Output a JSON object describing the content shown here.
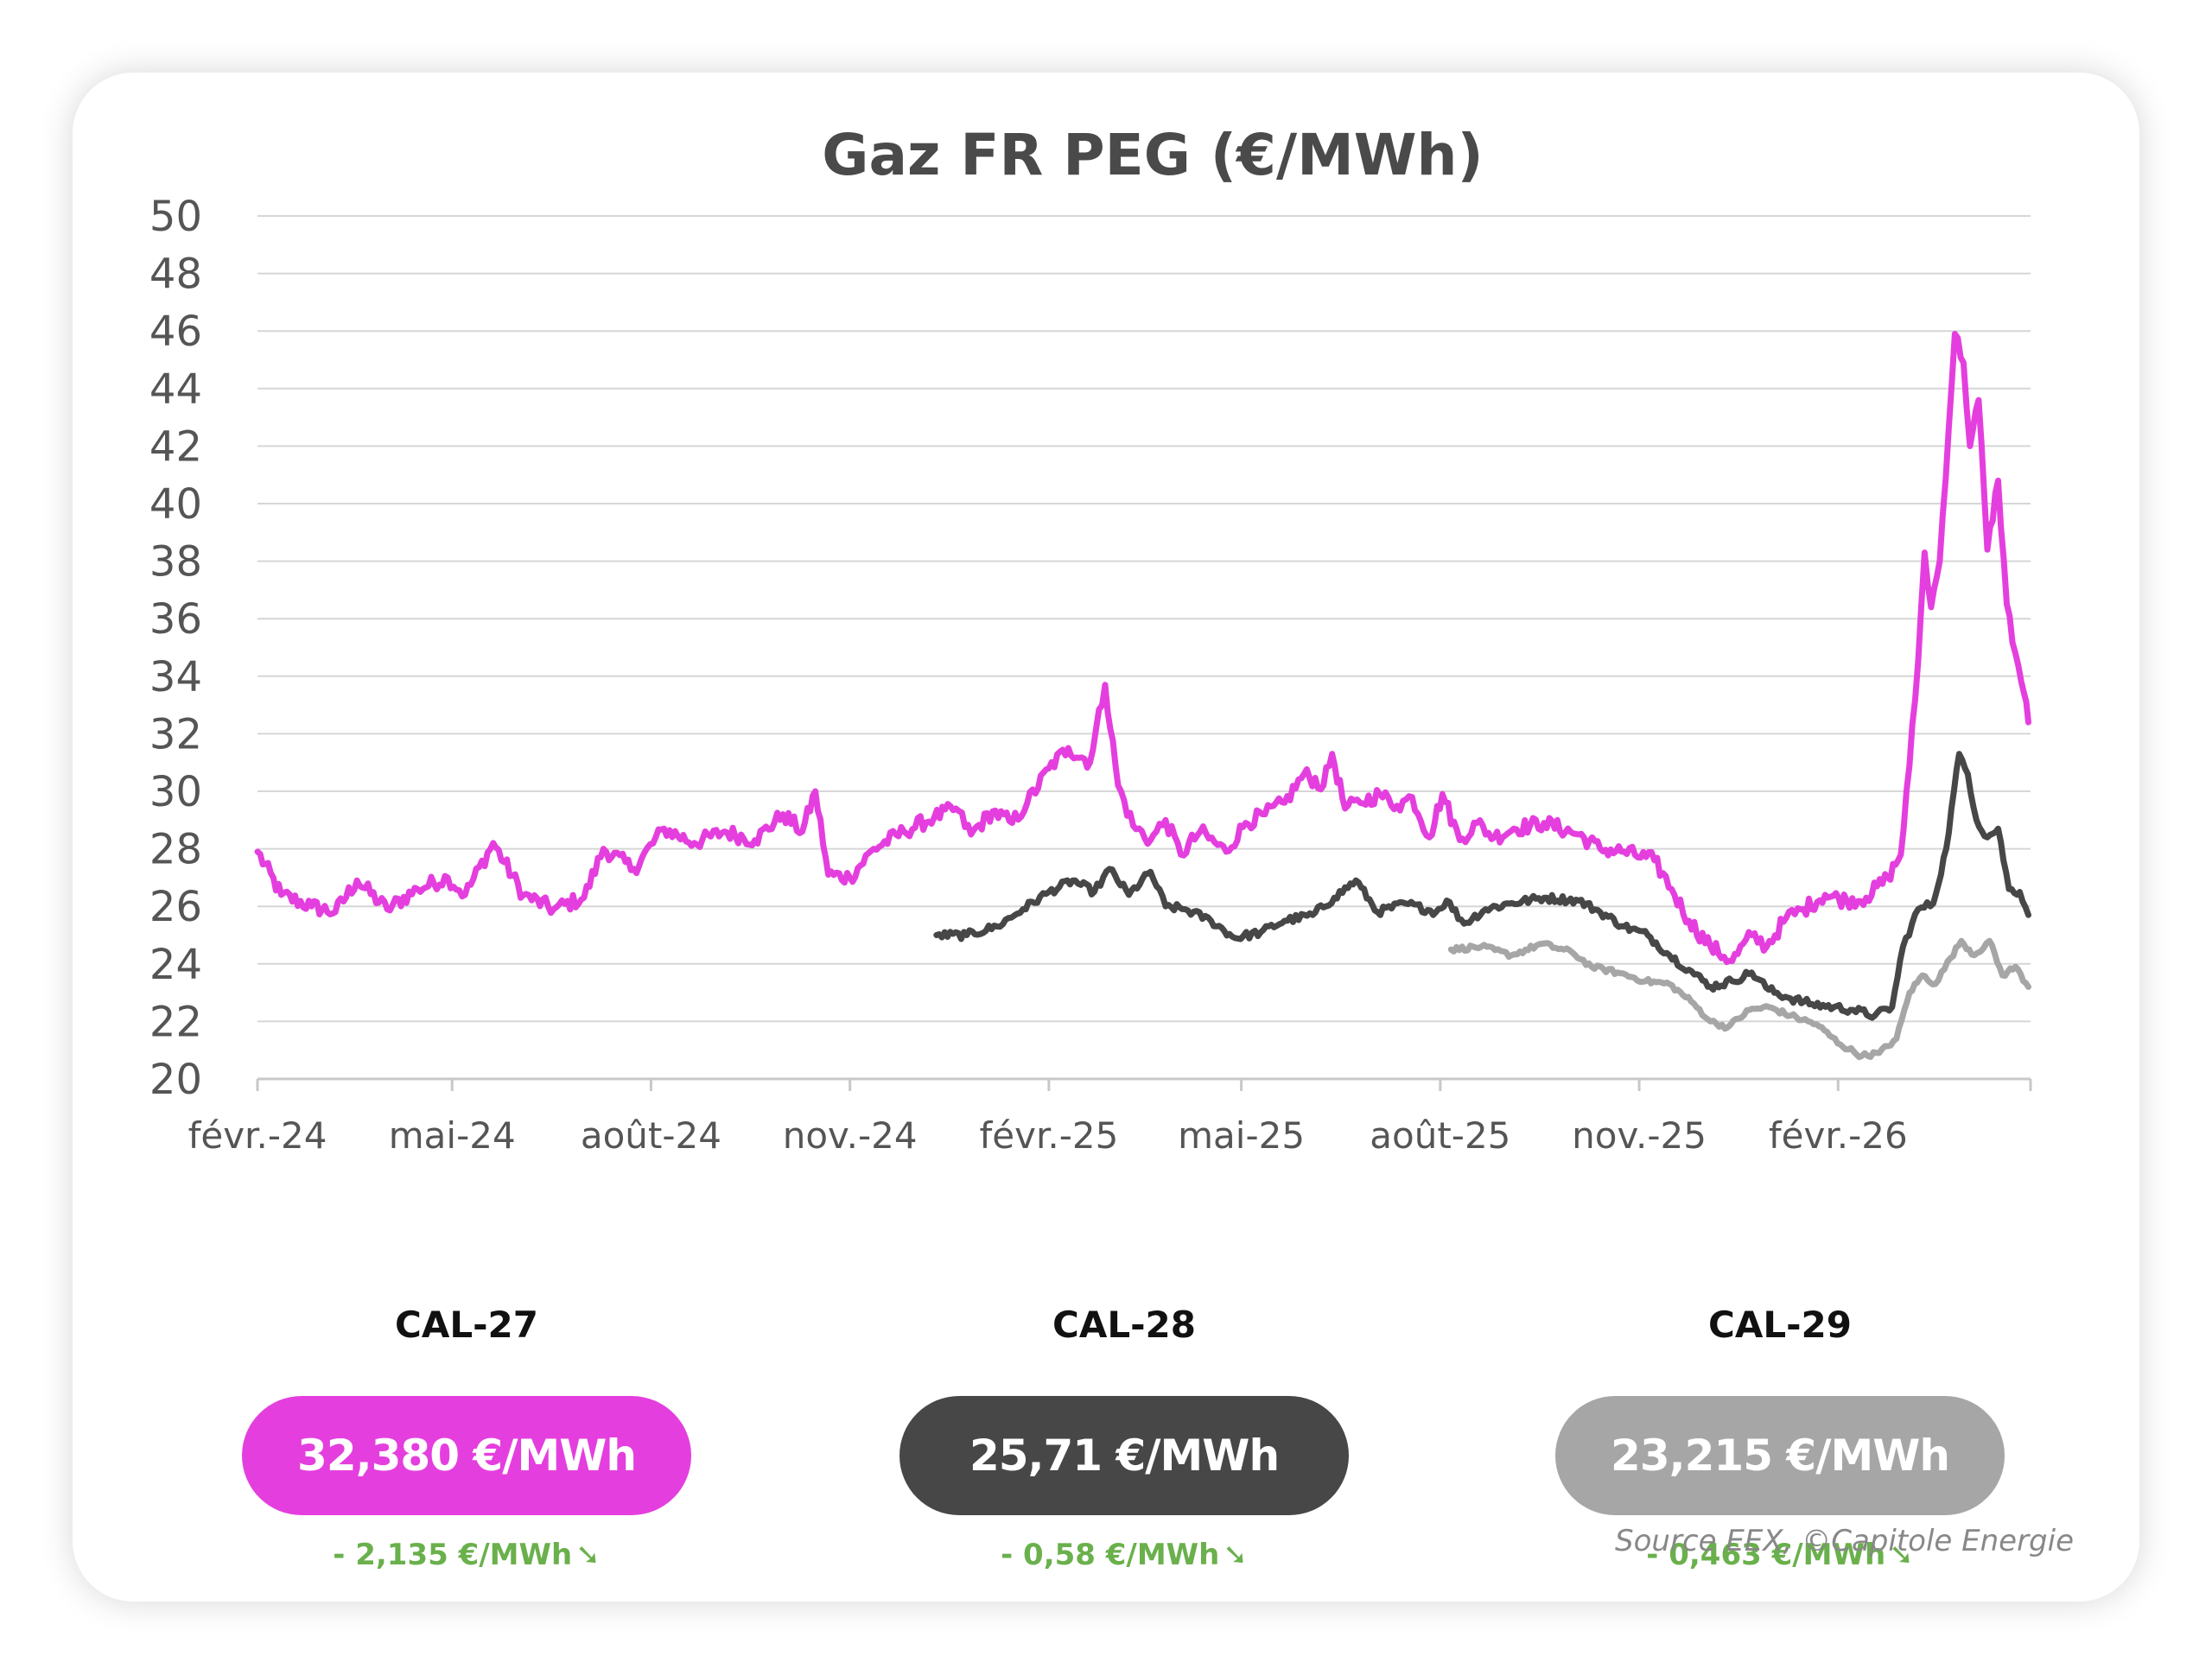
{
  "chart_data": {
    "type": "line",
    "title": "Gaz FR PEG (€/MWh)",
    "ylim": [
      20,
      50
    ],
    "y_ticks": [
      "20",
      "22",
      "24",
      "26",
      "28",
      "30",
      "32",
      "34",
      "36",
      "38",
      "40",
      "42",
      "44",
      "46",
      "48",
      "50"
    ],
    "x_tick_labels": [
      "févr.-24",
      "mai-24",
      "août-24",
      "nov.-24",
      "févr.-25",
      "mai-25",
      "août-25",
      "nov.-25",
      "févr.-26"
    ],
    "grid": true,
    "series": [
      {
        "name": "CAL-27",
        "color": "#e43fde",
        "points": [
          [
            "2024-02-01",
            27.9
          ],
          [
            "2024-02-12",
            26.4
          ],
          [
            "2024-02-26",
            26.0
          ],
          [
            "2024-03-08",
            25.8
          ],
          [
            "2024-03-18",
            26.9
          ],
          [
            "2024-04-01",
            25.9
          ],
          [
            "2024-04-15",
            26.6
          ],
          [
            "2024-04-29",
            27.0
          ],
          [
            "2024-05-07",
            26.4
          ],
          [
            "2024-05-20",
            28.2
          ],
          [
            "2024-06-03",
            26.4
          ],
          [
            "2024-06-17",
            25.9
          ],
          [
            "2024-07-01",
            26.3
          ],
          [
            "2024-07-10",
            28.0
          ],
          [
            "2024-07-24",
            27.3
          ],
          [
            "2024-08-07",
            28.7
          ],
          [
            "2024-08-21",
            28.2
          ],
          [
            "2024-09-04",
            28.6
          ],
          [
            "2024-09-18",
            28.3
          ],
          [
            "2024-10-01",
            29.2
          ],
          [
            "2024-10-10",
            28.6
          ],
          [
            "2024-10-16",
            30.0
          ],
          [
            "2024-10-22",
            27.1
          ],
          [
            "2024-11-01",
            27.0
          ],
          [
            "2024-11-12",
            28.0
          ],
          [
            "2024-11-26",
            28.6
          ],
          [
            "2024-12-10",
            29.1
          ],
          [
            "2024-12-20",
            29.4
          ],
          [
            "2024-12-27",
            28.5
          ],
          [
            "2025-01-06",
            29.3
          ],
          [
            "2025-01-15",
            28.9
          ],
          [
            "2025-01-22",
            29.6
          ],
          [
            "2025-02-01",
            30.8
          ],
          [
            "2025-02-10",
            31.5
          ],
          [
            "2025-02-20",
            31.0
          ],
          [
            "2025-02-27",
            33.7
          ],
          [
            "2025-03-05",
            30.2
          ],
          [
            "2025-03-12",
            28.8
          ],
          [
            "2025-03-20",
            28.3
          ],
          [
            "2025-03-27",
            29.0
          ],
          [
            "2025-04-03",
            27.8
          ],
          [
            "2025-04-12",
            28.6
          ],
          [
            "2025-04-24",
            27.9
          ],
          [
            "2025-05-03",
            28.9
          ],
          [
            "2025-05-12",
            29.2
          ],
          [
            "2025-05-21",
            29.6
          ],
          [
            "2025-05-30",
            30.6
          ],
          [
            "2025-06-08",
            30.2
          ],
          [
            "2025-06-12",
            31.3
          ],
          [
            "2025-06-18",
            29.4
          ],
          [
            "2025-06-25",
            29.6
          ],
          [
            "2025-07-04",
            29.9
          ],
          [
            "2025-07-12",
            29.5
          ],
          [
            "2025-07-19",
            29.8
          ],
          [
            "2025-07-27",
            28.4
          ],
          [
            "2025-08-02",
            29.9
          ],
          [
            "2025-08-10",
            28.3
          ],
          [
            "2025-08-18",
            28.9
          ],
          [
            "2025-08-26",
            28.4
          ],
          [
            "2025-09-04",
            28.7
          ],
          [
            "2025-09-18",
            28.9
          ],
          [
            "2025-10-04",
            28.5
          ],
          [
            "2025-10-14",
            28.0
          ],
          [
            "2025-10-25",
            27.9
          ],
          [
            "2025-11-08",
            27.6
          ],
          [
            "2025-11-16",
            26.6
          ],
          [
            "2025-11-24",
            25.5
          ],
          [
            "2025-12-04",
            24.6
          ],
          [
            "2025-12-14",
            24.1
          ],
          [
            "2025-12-23",
            25.0
          ],
          [
            "2025-12-30",
            24.6
          ],
          [
            "2026-01-08",
            25.6
          ],
          [
            "2026-01-16",
            25.9
          ],
          [
            "2026-01-26",
            26.4
          ],
          [
            "2026-02-05",
            26.2
          ],
          [
            "2026-02-14",
            26.3
          ],
          [
            "2026-02-24",
            27.0
          ],
          [
            "2026-03-02",
            27.8
          ],
          [
            "2026-03-06",
            30.9
          ],
          [
            "2026-03-10",
            34.5
          ],
          [
            "2026-03-13",
            38.3
          ],
          [
            "2026-03-16",
            36.4
          ],
          [
            "2026-03-20",
            38.0
          ],
          [
            "2026-03-27",
            45.9
          ],
          [
            "2026-03-31",
            44.9
          ],
          [
            "2026-04-03",
            42.0
          ],
          [
            "2026-04-07",
            43.6
          ],
          [
            "2026-04-11",
            38.4
          ],
          [
            "2026-04-16",
            40.8
          ],
          [
            "2026-04-20",
            36.5
          ],
          [
            "2026-04-24",
            34.8
          ],
          [
            "2026-04-28",
            33.4
          ],
          [
            "2026-04-30",
            32.4
          ]
        ]
      },
      {
        "name": "CAL-28",
        "color": "#474747",
        "points": [
          [
            "2024-12-11",
            25.0
          ],
          [
            "2024-12-25",
            25.0
          ],
          [
            "2025-01-08",
            25.3
          ],
          [
            "2025-01-20",
            25.9
          ],
          [
            "2025-02-01",
            26.5
          ],
          [
            "2025-02-12",
            26.9
          ],
          [
            "2025-02-22",
            26.5
          ],
          [
            "2025-03-01",
            27.3
          ],
          [
            "2025-03-10",
            26.4
          ],
          [
            "2025-03-20",
            27.2
          ],
          [
            "2025-03-27",
            26.0
          ],
          [
            "2025-04-05",
            25.9
          ],
          [
            "2025-04-17",
            25.5
          ],
          [
            "2025-04-28",
            24.9
          ],
          [
            "2025-05-10",
            25.1
          ],
          [
            "2025-05-21",
            25.5
          ],
          [
            "2025-06-03",
            25.7
          ],
          [
            "2025-06-13",
            26.3
          ],
          [
            "2025-06-23",
            26.9
          ],
          [
            "2025-07-03",
            25.8
          ],
          [
            "2025-07-16",
            26.1
          ],
          [
            "2025-07-30",
            25.8
          ],
          [
            "2025-08-04",
            26.2
          ],
          [
            "2025-08-12",
            25.4
          ],
          [
            "2025-08-22",
            25.9
          ],
          [
            "2025-09-02",
            26.1
          ],
          [
            "2025-09-18",
            26.3
          ],
          [
            "2025-10-04",
            26.2
          ],
          [
            "2025-10-14",
            25.8
          ],
          [
            "2025-10-25",
            25.3
          ],
          [
            "2025-11-05",
            25.0
          ],
          [
            "2025-11-15",
            24.3
          ],
          [
            "2025-11-24",
            23.8
          ],
          [
            "2025-12-04",
            23.2
          ],
          [
            "2025-12-14",
            23.4
          ],
          [
            "2025-12-23",
            23.7
          ],
          [
            "2025-12-31",
            23.1
          ],
          [
            "2026-01-10",
            22.8
          ],
          [
            "2026-01-20",
            22.6
          ],
          [
            "2026-01-30",
            22.5
          ],
          [
            "2026-02-08",
            22.4
          ],
          [
            "2026-02-18",
            22.2
          ],
          [
            "2026-02-26",
            22.5
          ],
          [
            "2026-03-03",
            24.6
          ],
          [
            "2026-03-10",
            25.9
          ],
          [
            "2026-03-17",
            26.1
          ],
          [
            "2026-03-23",
            28.0
          ],
          [
            "2026-03-29",
            31.3
          ],
          [
            "2026-04-02",
            30.6
          ],
          [
            "2026-04-06",
            29.0
          ],
          [
            "2026-04-11",
            28.4
          ],
          [
            "2026-04-16",
            28.7
          ],
          [
            "2026-04-21",
            26.6
          ],
          [
            "2026-04-26",
            26.5
          ],
          [
            "2026-04-30",
            25.7
          ]
        ]
      },
      {
        "name": "CAL-29",
        "color": "#a6a6a6",
        "points": [
          [
            "2025-08-06",
            24.5
          ],
          [
            "2025-08-20",
            24.6
          ],
          [
            "2025-09-03",
            24.3
          ],
          [
            "2025-09-17",
            24.7
          ],
          [
            "2025-10-01",
            24.4
          ],
          [
            "2025-10-10",
            23.9
          ],
          [
            "2025-10-22",
            23.7
          ],
          [
            "2025-11-04",
            23.4
          ],
          [
            "2025-11-15",
            23.3
          ],
          [
            "2025-11-25",
            22.7
          ],
          [
            "2025-12-04",
            22.0
          ],
          [
            "2025-12-12",
            21.8
          ],
          [
            "2025-12-22",
            22.4
          ],
          [
            "2025-12-31",
            22.5
          ],
          [
            "2026-01-10",
            22.2
          ],
          [
            "2026-01-22",
            21.9
          ],
          [
            "2026-02-02",
            21.2
          ],
          [
            "2026-02-12",
            20.8
          ],
          [
            "2026-02-20",
            20.9
          ],
          [
            "2026-02-28",
            21.4
          ],
          [
            "2026-03-06",
            23.0
          ],
          [
            "2026-03-12",
            23.6
          ],
          [
            "2026-03-18",
            23.3
          ],
          [
            "2026-03-25",
            24.2
          ],
          [
            "2026-03-30",
            24.8
          ],
          [
            "2026-04-05",
            24.3
          ],
          [
            "2026-04-12",
            24.8
          ],
          [
            "2026-04-18",
            23.6
          ],
          [
            "2026-04-24",
            23.9
          ],
          [
            "2026-04-30",
            23.2
          ]
        ]
      }
    ]
  },
  "cards": [
    {
      "label": "CAL-27",
      "price": "32,380 €/MWh",
      "change": "- 2,135 €/MWh",
      "color": "#e43fde"
    },
    {
      "label": "CAL-28",
      "price": "25,71 €/MWh",
      "change": "- 0,58 €/MWh",
      "color": "#474747"
    },
    {
      "label": "CAL-29",
      "price": "23,215 €/MWh",
      "change": "- 0,463 €/MWh",
      "color": "#a6a6a6"
    }
  ],
  "source": "Source EEX, ©Capitole Energie",
  "down_arrow_icon": "➘"
}
